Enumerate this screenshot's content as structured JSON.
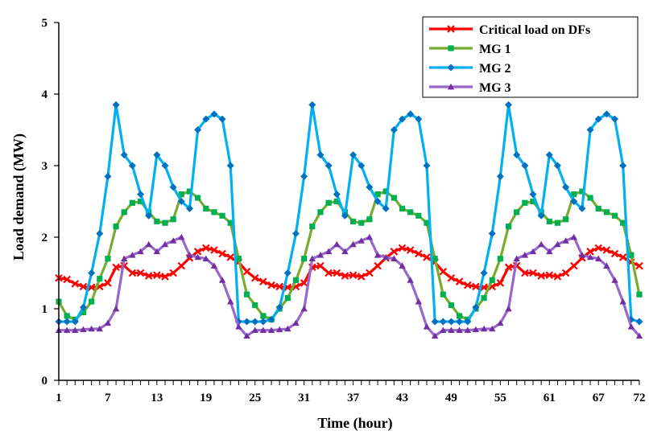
{
  "chart_data": {
    "type": "line",
    "title": "",
    "xlabel": "Time (hour)",
    "ylabel": "Load demand (MW)",
    "xlim": [
      1,
      72
    ],
    "ylim": [
      0,
      5
    ],
    "x_ticks": [
      1,
      7,
      13,
      19,
      25,
      31,
      37,
      43,
      49,
      55,
      61,
      67,
      72
    ],
    "y_ticks": [
      0,
      1,
      2,
      3,
      4,
      5
    ],
    "grid": false,
    "legend_position": "top-right",
    "x": [
      1,
      2,
      3,
      4,
      5,
      6,
      7,
      8,
      9,
      10,
      11,
      12,
      13,
      14,
      15,
      16,
      17,
      18,
      19,
      20,
      21,
      22,
      23,
      24,
      25,
      26,
      27,
      28,
      29,
      30,
      31,
      32,
      33,
      34,
      35,
      36,
      37,
      38,
      39,
      40,
      41,
      42,
      43,
      44,
      45,
      46,
      47,
      48,
      49,
      50,
      51,
      52,
      53,
      54,
      55,
      56,
      57,
      58,
      59,
      60,
      61,
      62,
      63,
      64,
      65,
      66,
      67,
      68,
      69,
      70,
      71,
      72
    ],
    "series": [
      {
        "name": "Critical load on DFs",
        "color": "#ff0000",
        "marker": "x",
        "values": [
          1.43,
          1.41,
          1.35,
          1.31,
          1.3,
          1.31,
          1.36,
          1.58,
          1.6,
          1.5,
          1.5,
          1.46,
          1.47,
          1.45,
          1.5,
          1.6,
          1.71,
          1.8,
          1.85,
          1.82,
          1.77,
          1.72,
          1.65,
          1.52,
          1.43,
          1.38,
          1.33,
          1.31,
          1.3,
          1.31,
          1.36,
          1.58,
          1.6,
          1.5,
          1.5,
          1.46,
          1.47,
          1.45,
          1.5,
          1.6,
          1.71,
          1.8,
          1.85,
          1.82,
          1.77,
          1.72,
          1.65,
          1.52,
          1.43,
          1.38,
          1.33,
          1.31,
          1.3,
          1.31,
          1.36,
          1.58,
          1.6,
          1.5,
          1.5,
          1.46,
          1.47,
          1.45,
          1.5,
          1.6,
          1.71,
          1.8,
          1.85,
          1.82,
          1.77,
          1.72,
          1.65,
          1.6
        ]
      },
      {
        "name": "MG 1",
        "color": "#77ac30",
        "marker_color": "#00b050",
        "marker": "square",
        "values": [
          1.1,
          0.9,
          0.85,
          0.95,
          1.1,
          1.42,
          1.7,
          2.15,
          2.35,
          2.48,
          2.5,
          2.35,
          2.22,
          2.2,
          2.25,
          2.6,
          2.64,
          2.55,
          2.4,
          2.35,
          2.3,
          2.2,
          1.7,
          1.2,
          1.05,
          0.9,
          0.85,
          1.0,
          1.15,
          1.4,
          1.7,
          2.15,
          2.35,
          2.48,
          2.5,
          2.35,
          2.22,
          2.2,
          2.25,
          2.6,
          2.64,
          2.55,
          2.4,
          2.35,
          2.3,
          2.2,
          1.7,
          1.2,
          1.05,
          0.9,
          0.85,
          1.0,
          1.15,
          1.4,
          1.7,
          2.15,
          2.35,
          2.48,
          2.5,
          2.35,
          2.22,
          2.2,
          2.25,
          2.6,
          2.64,
          2.55,
          2.4,
          2.35,
          2.3,
          2.2,
          1.75,
          1.2
        ]
      },
      {
        "name": "MG 2",
        "color": "#00b0f0",
        "marker_color": "#0070c0",
        "marker": "diamond",
        "values": [
          0.82,
          0.82,
          0.82,
          1.02,
          1.5,
          2.05,
          2.85,
          3.85,
          3.15,
          3.0,
          2.6,
          2.3,
          3.15,
          3.0,
          2.7,
          2.5,
          2.4,
          3.5,
          3.65,
          3.72,
          3.65,
          3.0,
          0.82,
          0.82,
          0.82,
          0.82,
          0.85,
          1.02,
          1.5,
          2.05,
          2.85,
          3.85,
          3.15,
          3.0,
          2.6,
          2.3,
          3.15,
          3.0,
          2.7,
          2.5,
          2.4,
          3.5,
          3.65,
          3.72,
          3.65,
          3.0,
          0.82,
          0.82,
          0.82,
          0.82,
          0.82,
          1.02,
          1.5,
          2.05,
          2.85,
          3.85,
          3.15,
          3.0,
          2.6,
          2.3,
          3.15,
          3.0,
          2.7,
          2.5,
          2.4,
          3.5,
          3.65,
          3.72,
          3.65,
          3.0,
          0.85,
          0.82
        ]
      },
      {
        "name": "MG 3",
        "color": "#9966cc",
        "marker_color": "#7030a0",
        "marker": "triangle",
        "values": [
          0.7,
          0.7,
          0.7,
          0.71,
          0.72,
          0.72,
          0.8,
          1.0,
          1.7,
          1.75,
          1.8,
          1.9,
          1.8,
          1.9,
          1.95,
          2.0,
          1.75,
          1.72,
          1.7,
          1.6,
          1.4,
          1.1,
          0.75,
          0.62,
          0.7,
          0.7,
          0.7,
          0.71,
          0.72,
          0.8,
          1.0,
          1.7,
          1.75,
          1.8,
          1.9,
          1.8,
          1.9,
          1.95,
          2.0,
          1.75,
          1.72,
          1.7,
          1.6,
          1.4,
          1.1,
          0.75,
          0.62,
          0.7,
          0.7,
          0.7,
          0.7,
          0.71,
          0.72,
          0.72,
          0.8,
          1.0,
          1.7,
          1.75,
          1.8,
          1.9,
          1.8,
          1.9,
          1.95,
          2.0,
          1.75,
          1.72,
          1.7,
          1.6,
          1.4,
          1.1,
          0.75,
          0.62
        ]
      }
    ]
  }
}
